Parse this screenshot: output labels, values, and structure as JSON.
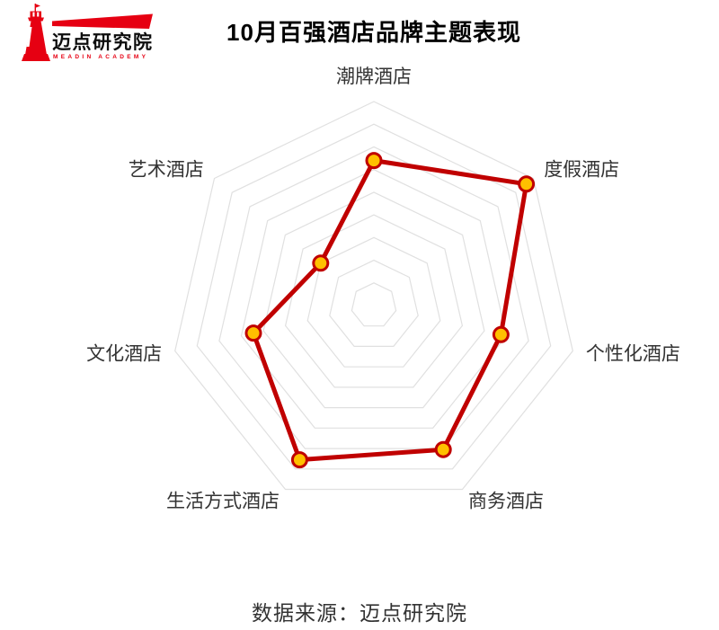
{
  "header": {
    "logo": {
      "brand": "迈点研究院",
      "sub_brand": "MEADIN ACADEMY"
    },
    "title": "10月百强酒店品牌主题表现"
  },
  "footer": {
    "source": "数据来源：迈点研究院"
  },
  "chart_data": {
    "type": "radar",
    "title": "10月百强酒店品牌主题表现",
    "categories": [
      "潮牌酒店",
      "度假酒店",
      "个性化酒店",
      "商务酒店",
      "生活方式酒店",
      "文化酒店",
      "艺术酒店"
    ],
    "series": [
      {
        "name": "品牌主题表现",
        "values": [
          6.4,
          8.6,
          5.75,
          7.05,
          7.55,
          5.45,
          3.0
        ]
      }
    ],
    "scale_max": 9,
    "ring_count": 9,
    "grid": "on",
    "radial_axis_lines": "off",
    "legend_position": "none",
    "colors": {
      "line": "#c00000",
      "point_fill": "#ffc000",
      "point_stroke": "#c00000",
      "grid_line": "#e0e0e0",
      "axis_label": "#333333",
      "title_text": "#000000",
      "brand_red": "#e60012"
    }
  }
}
